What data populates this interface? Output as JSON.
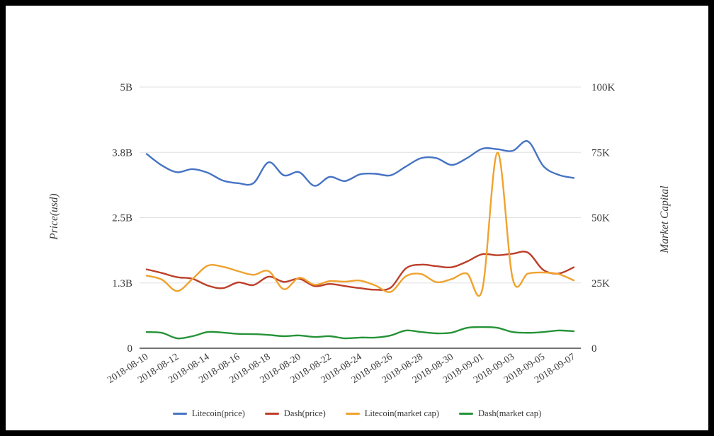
{
  "colors": {
    "frame": "#000000",
    "background": "#ffffff",
    "grid": "#e0e0e0",
    "axis_line": "#474747",
    "text": "#3b3b3b"
  },
  "chart_data": {
    "type": "line",
    "title": "",
    "ylabel_left": "Price(usd)",
    "ylabel_right": "Market Capital",
    "grid": true,
    "legend_position": "bottom",
    "x": [
      "2018-08-10",
      "2018-08-11",
      "2018-08-12",
      "2018-08-13",
      "2018-08-14",
      "2018-08-15",
      "2018-08-16",
      "2018-08-17",
      "2018-08-18",
      "2018-08-19",
      "2018-08-20",
      "2018-08-21",
      "2018-08-22",
      "2018-08-23",
      "2018-08-24",
      "2018-08-25",
      "2018-08-26",
      "2018-08-27",
      "2018-08-28",
      "2018-08-29",
      "2018-08-30",
      "2018-08-31",
      "2018-09-01",
      "2018-09-02",
      "2018-09-03",
      "2018-09-04",
      "2018-09-05",
      "2018-09-06",
      "2018-09-07"
    ],
    "x_tick_step": 2,
    "left_axis": {
      "title": "Price(usd)",
      "max": 5,
      "ticks": [
        0,
        1.25,
        2.5,
        3.75,
        5
      ],
      "labels": [
        "0",
        "1.3B",
        "2.5B",
        "3.8B",
        "5B"
      ]
    },
    "right_axis": {
      "title": "Market Capital",
      "max": 100,
      "ticks": [
        0,
        25,
        50,
        75,
        100
      ],
      "labels": [
        "0",
        "25K",
        "50K",
        "75K",
        "100K"
      ]
    },
    "series": [
      {
        "name": "Litecoin(price)",
        "axis": "left",
        "color": "#4673c4",
        "values": [
          3.72,
          3.5,
          3.37,
          3.43,
          3.36,
          3.21,
          3.16,
          3.16,
          3.56,
          3.31,
          3.37,
          3.11,
          3.28,
          3.2,
          3.33,
          3.34,
          3.31,
          3.48,
          3.64,
          3.64,
          3.51,
          3.64,
          3.82,
          3.81,
          3.78,
          3.96,
          3.49,
          3.32,
          3.26
        ]
      },
      {
        "name": "Dash(price)",
        "axis": "left",
        "color": "#bc3f29",
        "values": [
          1.51,
          1.44,
          1.36,
          1.33,
          1.2,
          1.15,
          1.26,
          1.21,
          1.37,
          1.27,
          1.33,
          1.19,
          1.23,
          1.19,
          1.15,
          1.12,
          1.16,
          1.53,
          1.6,
          1.57,
          1.55,
          1.66,
          1.8,
          1.78,
          1.81,
          1.83,
          1.5,
          1.43,
          1.55
        ]
      },
      {
        "name": "Litecoin(market cap)",
        "axis": "right",
        "color": "#f0a22e",
        "values": [
          27.8,
          26.3,
          21.9,
          26.5,
          31.6,
          31.2,
          29.5,
          28.1,
          29.5,
          22.6,
          27.0,
          24.3,
          25.7,
          25.5,
          25.9,
          24.0,
          21.6,
          27.6,
          28.4,
          25.3,
          26.5,
          28.6,
          22.4,
          74.9,
          26.5,
          28.6,
          29.0,
          28.4,
          26.0
        ]
      },
      {
        "name": "Dash(market cap)",
        "axis": "right",
        "color": "#259337",
        "values": [
          6.2,
          5.9,
          3.8,
          4.6,
          6.2,
          6.0,
          5.5,
          5.4,
          5.1,
          4.6,
          4.9,
          4.3,
          4.6,
          3.8,
          4.1,
          4.1,
          4.9,
          6.8,
          6.2,
          5.7,
          6.0,
          7.8,
          8.1,
          7.8,
          6.2,
          5.9,
          6.2,
          6.8,
          6.5
        ]
      }
    ]
  }
}
